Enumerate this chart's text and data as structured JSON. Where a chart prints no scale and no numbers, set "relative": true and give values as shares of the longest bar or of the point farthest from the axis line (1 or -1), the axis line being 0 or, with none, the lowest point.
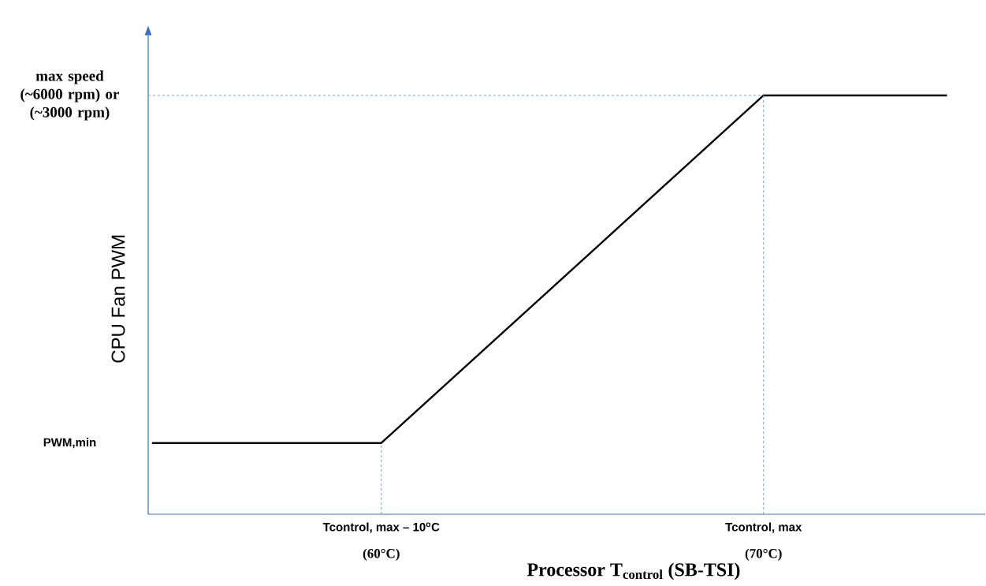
{
  "chart_data": {
    "type": "line",
    "relative": true,
    "xlabel": "Processor T$_{control}$ (SB-TSI)",
    "ylabel": "CPU Fan PWM",
    "x": [
      54,
      60,
      70,
      74.8
    ],
    "series": [
      {
        "color": "#000000",
        "values": [
          0.17,
          0.17,
          1,
          1
        ]
      }
    ],
    "xlim": [
      53.9,
      75.8
    ],
    "xticks": [
      {
        "value": 60,
        "label": "(60°C)"
      },
      {
        "value": 70,
        "label": "(70°C)"
      }
    ],
    "ref_lines": [
      {
        "axis": "x",
        "value": 60,
        "color": "#5b9bd5",
        "line_style": "dashed"
      },
      {
        "axis": "x",
        "value": 70,
        "color": "#5b9bd5",
        "line_style": "dashed"
      },
      {
        "axis": "y",
        "value": 1,
        "color": "#5b9bd5",
        "line_style": "dashed"
      }
    ],
    "annotations": [
      "Tcontrol, max – 10$^{o}$C",
      "Tcontrol, max",
      "PWM,min",
      "max speed (~6000 rpm) or (~3000 rpm)"
    ],
    "marker": "none",
    "line_style": "solid",
    "grid": false
  }
}
